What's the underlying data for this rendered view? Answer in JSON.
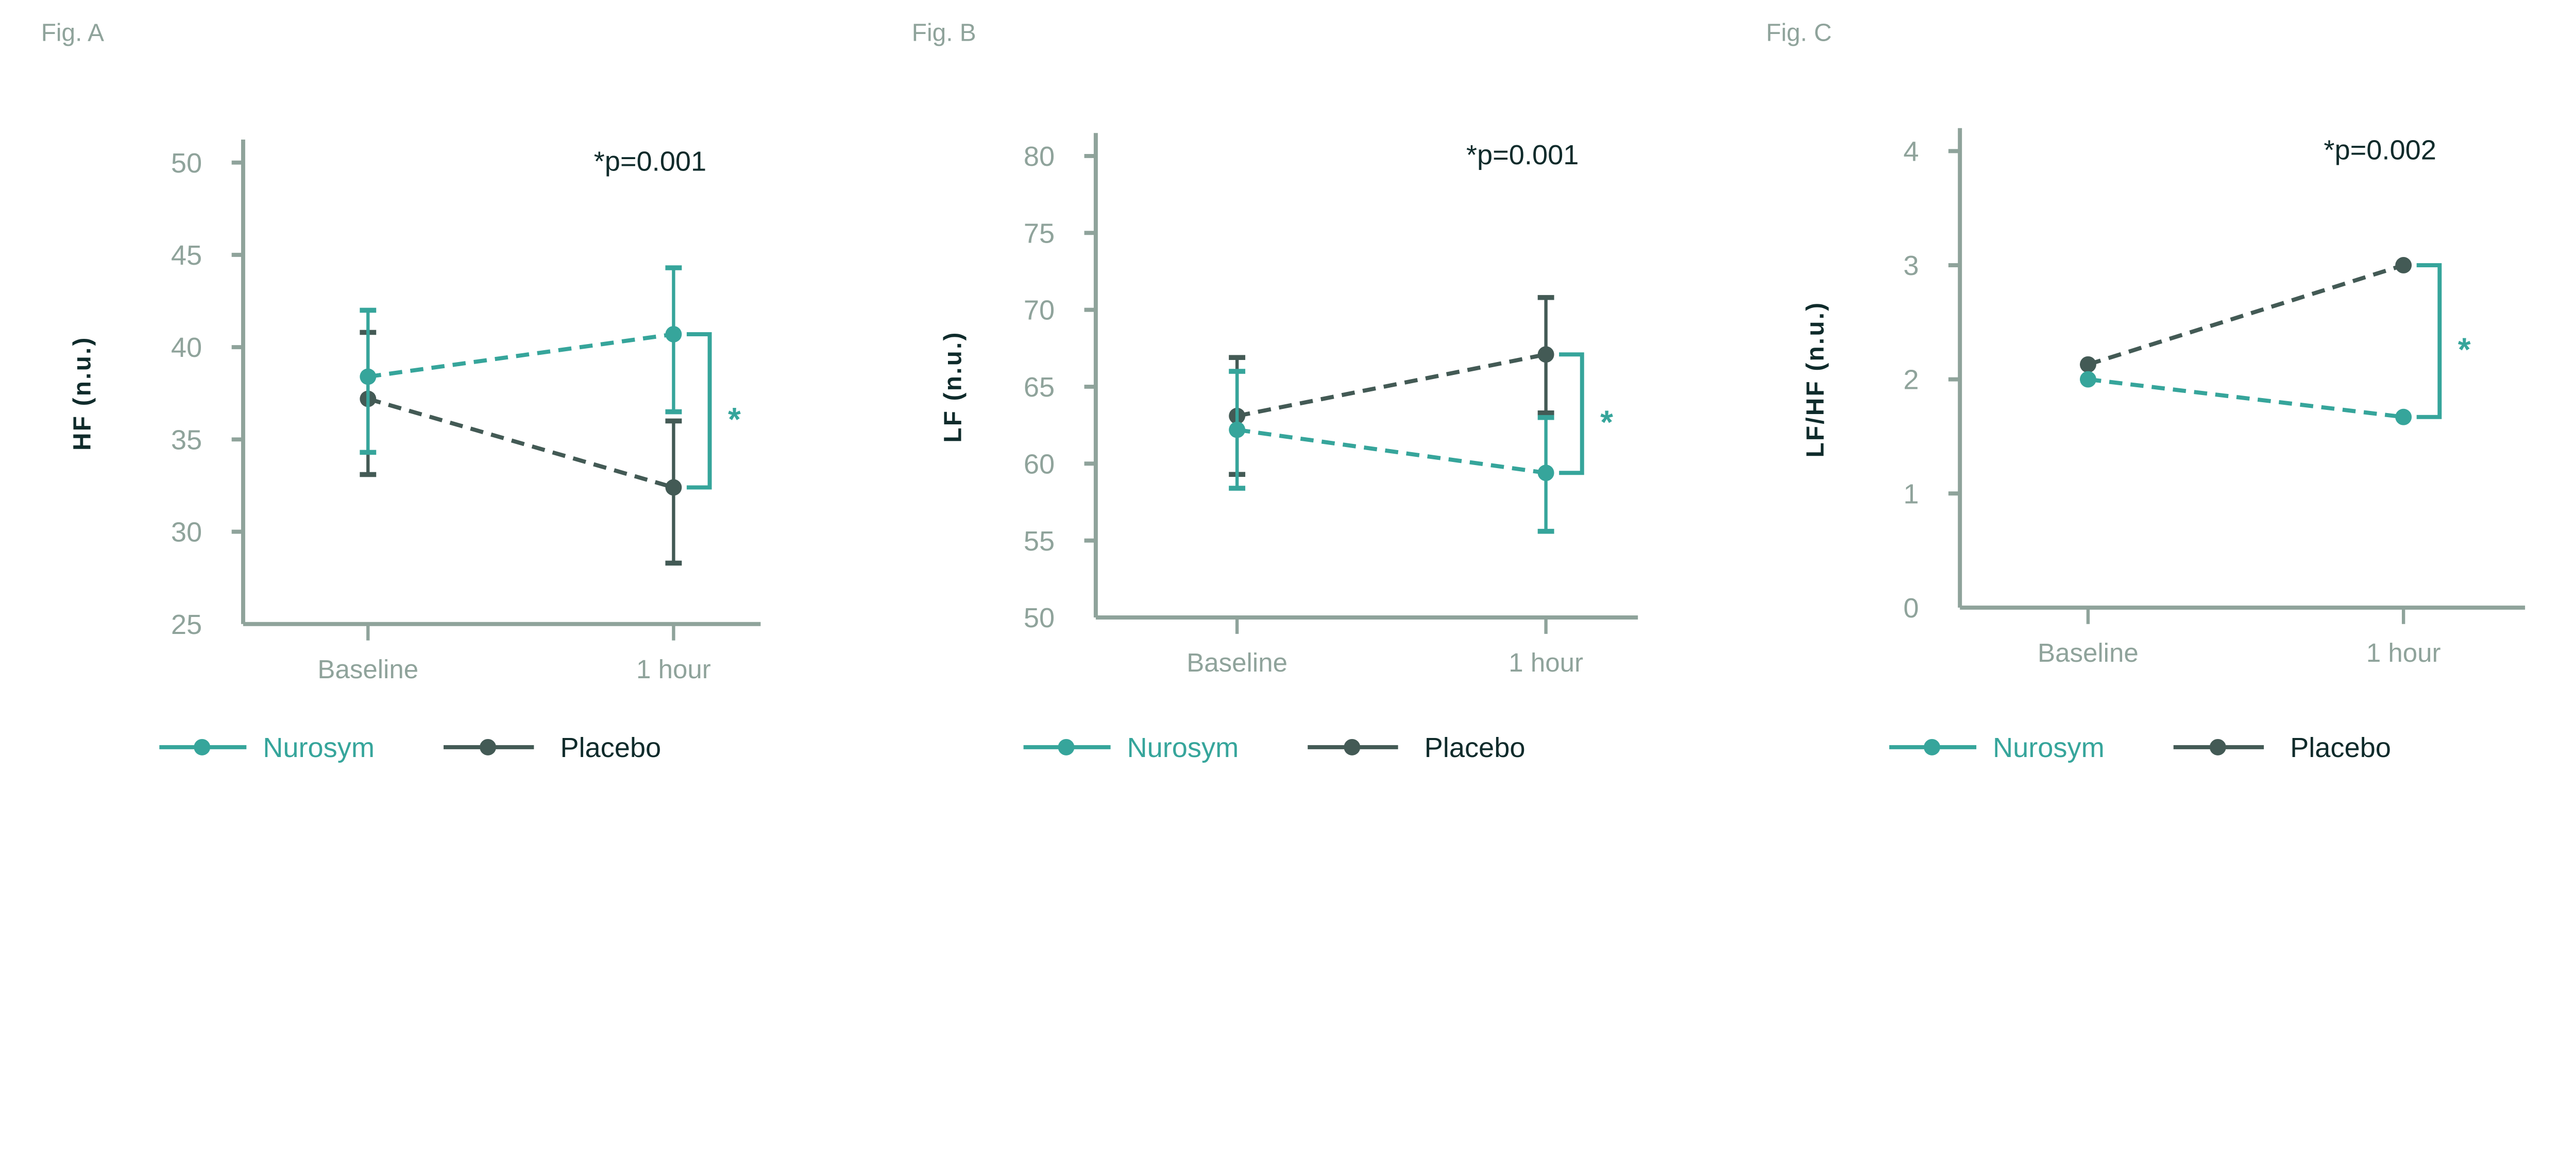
{
  "colors": {
    "nurosym": "#36a59b",
    "placebo": "#435a55",
    "axis": "#8fa39b",
    "text": "#0f2b2b"
  },
  "chart_data": [
    {
      "type": "line",
      "figure_label": "Fig. A",
      "ylabel": "HF (n.u.)",
      "ylim": [
        25,
        50
      ],
      "yticks": [
        25,
        30,
        35,
        40,
        45,
        50
      ],
      "categories": [
        "Baseline",
        "1 hour"
      ],
      "annotation": "*p=0.001",
      "significance_marker": "*",
      "series": [
        {
          "name": "Nurosym",
          "values": [
            38.4,
            40.7
          ],
          "error_low": [
            34.3,
            36.5
          ],
          "error_high": [
            42.0,
            44.3
          ]
        },
        {
          "name": "Placebo",
          "values": [
            37.2,
            32.4
          ],
          "error_low": [
            33.1,
            28.3
          ],
          "error_high": [
            40.8,
            36.0
          ]
        }
      ],
      "legend": {
        "placement": "bottom-left",
        "entries": [
          "Nurosym",
          "Placebo"
        ]
      }
    },
    {
      "type": "line",
      "figure_label": "Fig. B",
      "ylabel": "LF (n.u.)",
      "ylim": [
        50,
        80
      ],
      "yticks": [
        50,
        55,
        60,
        65,
        70,
        75,
        80
      ],
      "categories": [
        "Baseline",
        "1 hour"
      ],
      "annotation": "*p=0.001",
      "significance_marker": "*",
      "series": [
        {
          "name": "Nurosym",
          "values": [
            62.2,
            59.4
          ],
          "error_low": [
            58.4,
            55.6
          ],
          "error_high": [
            66.0,
            63.0
          ]
        },
        {
          "name": "Placebo",
          "values": [
            63.1,
            67.1
          ],
          "error_low": [
            59.3,
            63.3
          ],
          "error_high": [
            66.9,
            70.8
          ]
        }
      ],
      "legend": {
        "placement": "bottom-left",
        "entries": [
          "Nurosym",
          "Placebo"
        ]
      }
    },
    {
      "type": "line",
      "figure_label": "Fig. C",
      "ylabel": "LF/HF (n.u.)",
      "ylim": [
        0,
        4
      ],
      "yticks": [
        0,
        1,
        2,
        3,
        4
      ],
      "categories": [
        "Baseline",
        "1 hour"
      ],
      "annotation": "*p=0.002",
      "significance_marker": "*",
      "series": [
        {
          "name": "Nurosym",
          "values": [
            2.0,
            1.67
          ]
        },
        {
          "name": "Placebo",
          "values": [
            2.13,
            3.0
          ]
        }
      ],
      "legend": {
        "placement": "bottom-left",
        "entries": [
          "Nurosym",
          "Placebo"
        ]
      }
    }
  ]
}
